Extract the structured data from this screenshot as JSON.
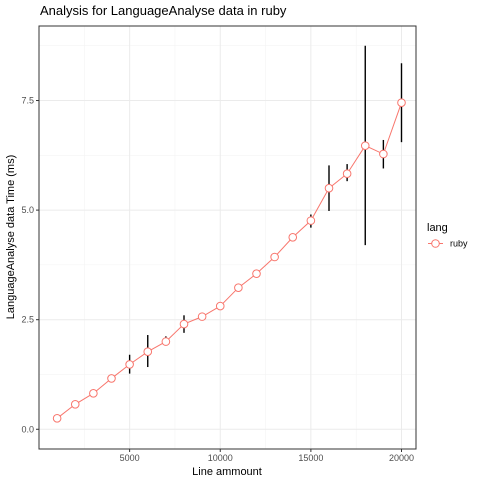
{
  "chart_data": {
    "type": "line",
    "title": "Analysis for LanguageAnalyse data in ruby",
    "xlabel": "Line ammount",
    "ylabel": "LanguageAnalyse data Time (ms)",
    "xlim": [
      0,
      20800
    ],
    "ylim": [
      -0.45,
      9.2
    ],
    "x_ticks": [
      5000,
      10000,
      15000,
      20000
    ],
    "x_tick_labels": [
      "5000",
      "10000",
      "15000",
      "20000"
    ],
    "y_ticks": [
      0,
      2.5,
      5,
      7.5
    ],
    "y_tick_labels": [
      "0.0",
      "2.5",
      "5.0",
      "7.5"
    ],
    "grid": true,
    "legend_position": "right",
    "legend_title": "lang",
    "series": [
      {
        "name": "ruby",
        "color": "#F8766D",
        "x": [
          1000,
          2000,
          3000,
          4000,
          5000,
          6000,
          7000,
          8000,
          9000,
          10000,
          11000,
          12000,
          13000,
          14000,
          15000,
          16000,
          17000,
          18000,
          19000,
          20000
        ],
        "y": [
          0.25,
          0.57,
          0.82,
          1.16,
          1.48,
          1.77,
          2.0,
          2.4,
          2.57,
          2.81,
          3.23,
          3.55,
          3.93,
          4.38,
          4.76,
          5.5,
          5.83,
          6.47,
          6.28,
          7.45
        ],
        "error_low": [
          0.25,
          0.57,
          0.82,
          1.16,
          1.27,
          1.42,
          1.91,
          2.2,
          2.57,
          2.81,
          3.18,
          3.55,
          3.93,
          4.38,
          4.6,
          4.98,
          5.66,
          4.2,
          5.95,
          6.55
        ],
        "error_high": [
          0.25,
          0.57,
          0.82,
          1.16,
          1.7,
          2.15,
          2.12,
          2.6,
          2.57,
          2.81,
          3.3,
          3.55,
          3.93,
          4.38,
          4.9,
          6.02,
          6.05,
          8.75,
          6.6,
          8.35
        ]
      }
    ]
  }
}
